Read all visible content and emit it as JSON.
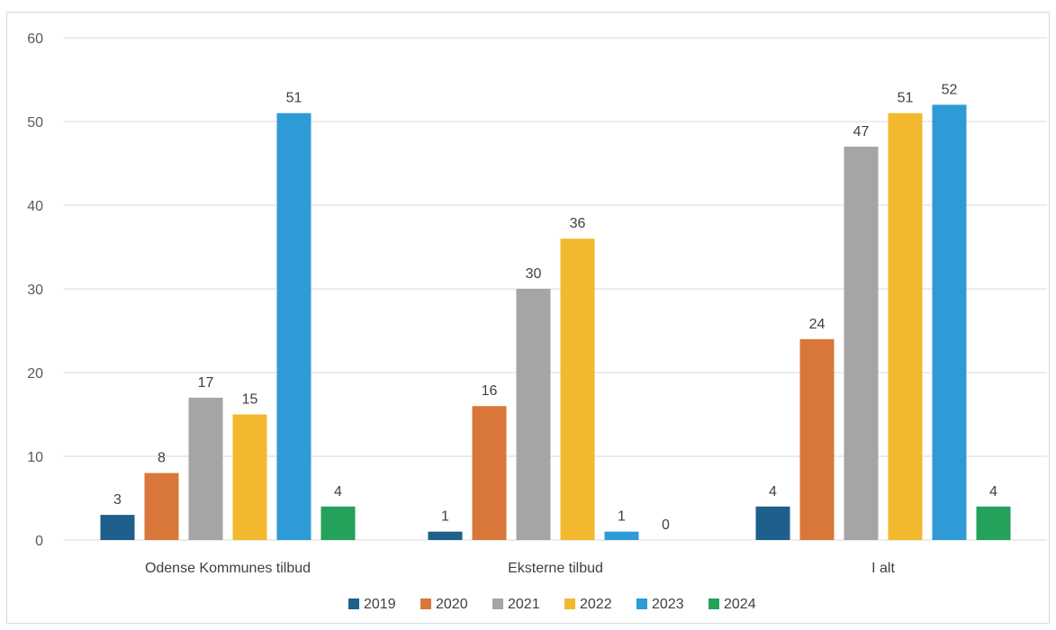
{
  "chart_data": {
    "type": "bar",
    "categories": [
      "Odense Kommunes tilbud",
      "Eksterne tilbud",
      "I alt"
    ],
    "series": [
      {
        "name": "2019",
        "color": "#1f5f8b",
        "values": [
          3,
          1,
          4
        ]
      },
      {
        "name": "2020",
        "color": "#d9773a",
        "values": [
          8,
          16,
          24
        ]
      },
      {
        "name": "2021",
        "color": "#a5a5a5",
        "values": [
          17,
          30,
          47
        ]
      },
      {
        "name": "2022",
        "color": "#f2b82e",
        "values": [
          15,
          36,
          51
        ]
      },
      {
        "name": "2023",
        "color": "#2e9bd6",
        "values": [
          51,
          1,
          52
        ]
      },
      {
        "name": "2024",
        "color": "#24a15a",
        "values": [
          4,
          0,
          4
        ]
      }
    ],
    "ylim": [
      0,
      60
    ],
    "yticks": [
      0,
      10,
      20,
      30,
      40,
      50,
      60
    ],
    "grid": true,
    "legend_position": "bottom",
    "title": "",
    "xlabel": "",
    "ylabel": ""
  }
}
